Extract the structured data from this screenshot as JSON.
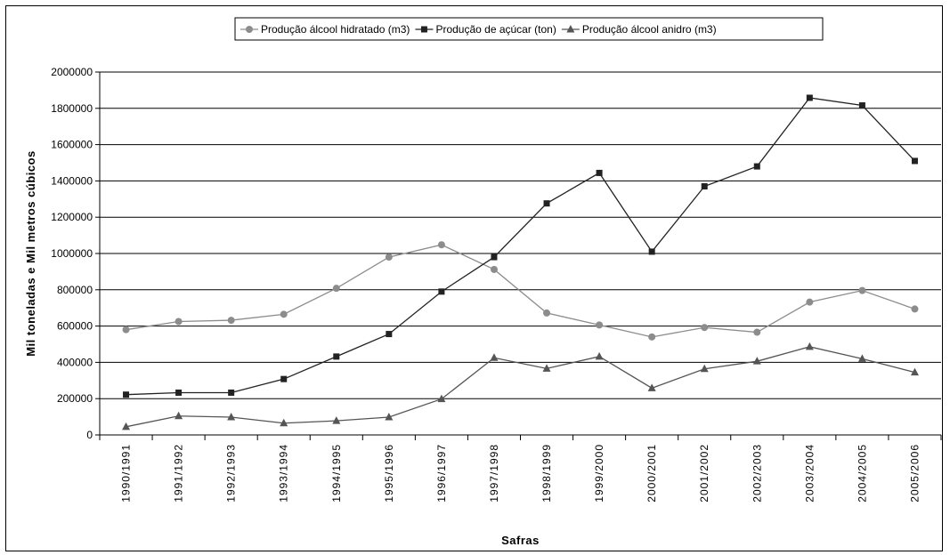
{
  "chart_data": {
    "type": "line",
    "xlabel": "Safras",
    "ylabel": "Mil toneladas e Mil metros cúbicos",
    "ylim": [
      0,
      2000000
    ],
    "yticks": [
      "0",
      "200000",
      "400000",
      "600000",
      "800000",
      "1000000",
      "1200000",
      "1400000",
      "1600000",
      "1800000",
      "2000000"
    ],
    "grid": true,
    "legend_position": "top",
    "categories": [
      "1990/1991",
      "1991/1992",
      "1992/1993",
      "1993/1994",
      "1994/1995",
      "1995/1996",
      "1996/1997",
      "1997/1998",
      "1998/1999",
      "1999/2000",
      "2000/2001",
      "2001/2002",
      "2002/2003",
      "2003/2004",
      "2004/2005",
      "2005/2006"
    ],
    "series": [
      {
        "name": "Produção álcool hidratado (m3)",
        "marker": "circle",
        "color": "#8c8c8c",
        "values": [
          580000,
          625000,
          632000,
          665000,
          808000,
          980000,
          1048000,
          912000,
          672000,
          606000,
          540000,
          592000,
          566000,
          732000,
          796000,
          694000
        ]
      },
      {
        "name": "Produção de açúcar (ton)",
        "marker": "square",
        "color": "#222222",
        "values": [
          222000,
          233000,
          233000,
          308000,
          432000,
          556000,
          790000,
          980000,
          1276000,
          1444000,
          1010000,
          1370000,
          1480000,
          1858000,
          1816000,
          1510000
        ]
      },
      {
        "name": "Produção álcool anidro (m3)",
        "marker": "triangle",
        "color": "#555555",
        "values": [
          45000,
          104000,
          98000,
          65000,
          78000,
          98000,
          198000,
          425000,
          366000,
          432000,
          258000,
          364000,
          406000,
          486000,
          420000,
          345000
        ]
      }
    ]
  }
}
